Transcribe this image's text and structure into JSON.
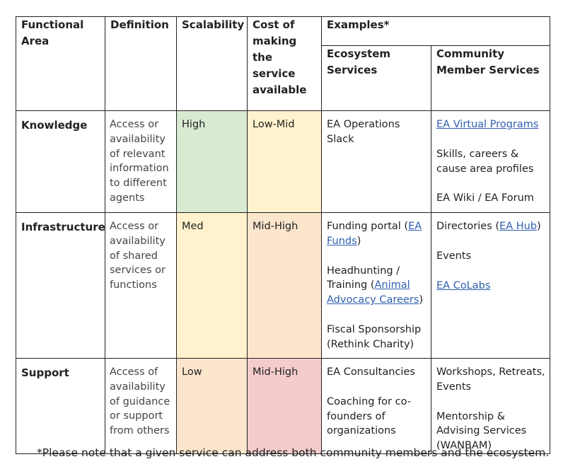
{
  "headers": {
    "functional_area": "Functional Area",
    "definition": "Definition",
    "scalability": "Scalability",
    "cost": "Cost of making the service available",
    "examples": "Examples*",
    "ecosystem": "Ecosystem Services",
    "community": "Community Member Services"
  },
  "rows": [
    {
      "area": "Knowledge",
      "definition": "Access or availability of relevant information to different agents",
      "scalability": "High",
      "scalability_color": "#d9ead3",
      "cost": "Low-Mid",
      "cost_color": "#fff2cc",
      "ecosystem": {
        "item1": "EA Operations Slack"
      },
      "community": {
        "item1_link": "EA Virtual Programs",
        "item2": "Skills, careers & cause area profiles",
        "item3": "EA Wiki / EA Forum"
      }
    },
    {
      "area": "Infrastructure",
      "definition": "Access or availability of shared services or functions",
      "scalability": "Med",
      "scalability_color": "#fff2cc",
      "cost": "Mid-High",
      "cost_color": "#fce5cd",
      "ecosystem": {
        "item1_pre": "Funding portal (",
        "item1_link": "EA Funds",
        "item1_post": ")",
        "item2_pre": "Headhunting / Training (",
        "item2_link": "Animal Advocacy Careers",
        "item2_post": ")",
        "item3": "Fiscal Sponsorship (Rethink Charity)"
      },
      "community": {
        "item1_pre": "Directories (",
        "item1_link": "EA Hub",
        "item1_post": ")",
        "item2": "Events",
        "item3_link": "EA CoLabs"
      }
    },
    {
      "area": "Support",
      "definition": "Access of availability of guidance or support from others",
      "scalability": "Low",
      "scalability_color": "#fce5cd",
      "cost": "Mid-High",
      "cost_color": "#f4cccc",
      "ecosystem": {
        "item1": "EA Consultancies",
        "item2": "Coaching for co-founders of organizations"
      },
      "community": {
        "item1": "Workshops, Retreats, Events",
        "item2": "Mentorship & Advising Services (WANBAM)"
      }
    }
  ],
  "footnote": "*Please note that a given service can address both community members and the ecosystem."
}
